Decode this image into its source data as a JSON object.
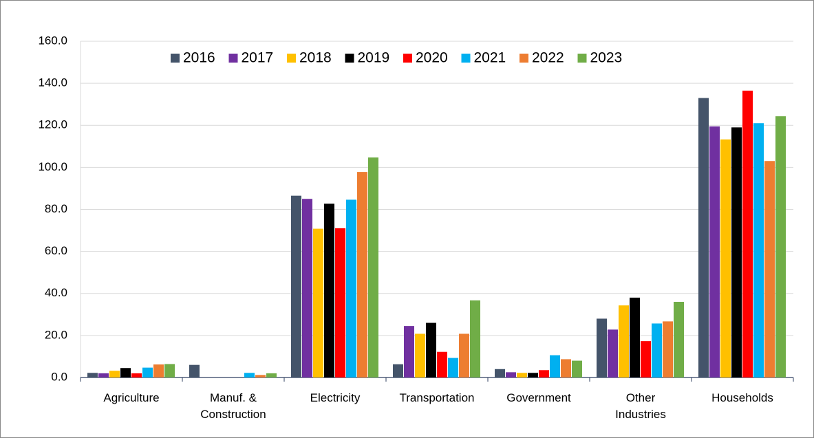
{
  "chart_data": {
    "type": "bar",
    "categories": [
      "Agriculture",
      "Manuf. &\nConstruction",
      "Electricity",
      "Transportation",
      "Government",
      "Other\nIndustries",
      "Households"
    ],
    "series": [
      {
        "name": "2016",
        "color": "#44546a",
        "values": [
          2.2,
          6.0,
          86.5,
          6.3,
          4.0,
          28.0,
          133.0
        ]
      },
      {
        "name": "2017",
        "color": "#7030a0",
        "values": [
          2.0,
          0,
          85.0,
          24.5,
          2.5,
          22.8,
          119.5
        ]
      },
      {
        "name": "2018",
        "color": "#ffc000",
        "values": [
          3.2,
          0,
          70.8,
          20.8,
          2.2,
          34.3,
          113.3
        ]
      },
      {
        "name": "2019",
        "color": "#000000",
        "values": [
          4.5,
          0,
          82.7,
          26.0,
          2.2,
          38.0,
          119.0
        ]
      },
      {
        "name": "2020",
        "color": "#ff0000",
        "values": [
          2.0,
          0,
          71.0,
          12.2,
          3.5,
          17.3,
          136.5
        ]
      },
      {
        "name": "2021",
        "color": "#00b0f0",
        "values": [
          4.7,
          2.2,
          84.6,
          9.3,
          10.6,
          25.7,
          121.0
        ]
      },
      {
        "name": "2022",
        "color": "#ed7d31",
        "values": [
          6.2,
          1.2,
          97.8,
          20.8,
          8.7,
          26.7,
          103.0
        ]
      },
      {
        "name": "2023",
        "color": "#70ad47",
        "values": [
          6.4,
          2.0,
          104.7,
          36.7,
          8.0,
          36.0,
          124.3
        ]
      }
    ],
    "ylim": [
      0,
      160
    ],
    "yticks": [
      {
        "value": 0,
        "label": "0.0"
      },
      {
        "value": 20,
        "label": "20.0"
      },
      {
        "value": 40,
        "label": "40.0"
      },
      {
        "value": 60,
        "label": "60.0"
      },
      {
        "value": 80,
        "label": "80.0"
      },
      {
        "value": 100,
        "label": "100.0"
      },
      {
        "value": 120,
        "label": "120.0"
      },
      {
        "value": 140,
        "label": "140.0"
      },
      {
        "value": 160,
        "label": "160.0"
      }
    ],
    "grid": true,
    "legend": "top"
  }
}
